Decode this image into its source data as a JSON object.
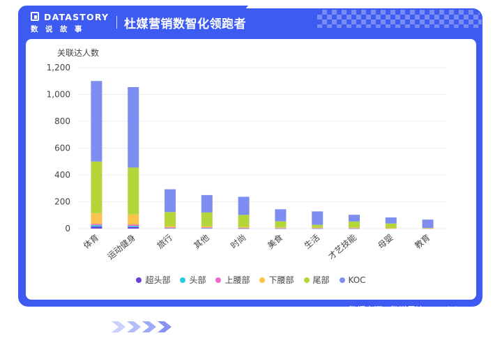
{
  "header": {
    "logo_word": "DATASTORY",
    "logo_sub": "数说故事",
    "title": "杜媒营销数智化领跑者"
  },
  "footer": {
    "source": "数据来源：数说雷达・SocialBox",
    "date_range": "2022.08.05-2024.08.05"
  },
  "colors": {
    "frame": "#3d5af1",
    "card": "#ffffff"
  },
  "chart_data": {
    "type": "bar",
    "stacked": true,
    "ylabel": "关联达人数",
    "ylim": [
      0,
      1200
    ],
    "yticks": [
      0,
      200,
      400,
      600,
      800,
      1000,
      1200
    ],
    "ytick_labels": [
      "0",
      "200",
      "400",
      "600",
      "800",
      "1,000",
      "1,200"
    ],
    "grid": true,
    "legend_position": "bottom",
    "categories": [
      "体育",
      "运动健身",
      "旅行",
      "其他",
      "时尚",
      "美食",
      "生活",
      "才艺技能",
      "母婴",
      "教育"
    ],
    "series": [
      {
        "name": "超头部",
        "color": "#6a3fd6",
        "values": [
          15,
          12,
          2,
          2,
          1,
          1,
          1,
          1,
          0,
          0
        ]
      },
      {
        "name": "头部",
        "color": "#29c9e0",
        "values": [
          10,
          8,
          2,
          2,
          1,
          1,
          1,
          1,
          0,
          0
        ]
      },
      {
        "name": "上腰部",
        "color": "#f06bc8",
        "values": [
          10,
          10,
          4,
          5,
          3,
          2,
          2,
          2,
          1,
          1
        ]
      },
      {
        "name": "下腰部",
        "color": "#fbc34c",
        "values": [
          80,
          75,
          10,
          9,
          7,
          5,
          4,
          4,
          2,
          1
        ]
      },
      {
        "name": "尾部",
        "color": "#b5d63a",
        "values": [
          385,
          350,
          105,
          102,
          90,
          45,
          20,
          45,
          35,
          3
        ]
      },
      {
        "name": "KOC",
        "color": "#7e8ef0",
        "values": [
          600,
          600,
          170,
          130,
          135,
          90,
          100,
          50,
          45,
          62
        ]
      }
    ]
  }
}
